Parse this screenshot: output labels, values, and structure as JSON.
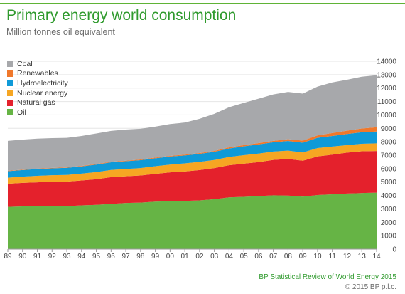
{
  "title": "Primary energy world consumption",
  "subtitle": "Million tonnes oil equivalent",
  "footer": {
    "source": "BP Statistical Review of World Energy 2015",
    "copyright": "© 2015 BP p.l.c."
  },
  "colors": {
    "brand_green": "#2f9a2d",
    "oil": "#66b445",
    "natural_gas": "#e4212c",
    "nuclear_energy": "#f6a623",
    "hydroelectricity": "#0f9ad8",
    "renewables": "#f0782b",
    "coal": "#a7a8ab"
  },
  "chart_data": {
    "type": "area",
    "stacked": true,
    "title": "Primary energy world consumption",
    "subtitle": "Million tonnes oil equivalent",
    "x_tick_labels": [
      "89",
      "90",
      "91",
      "92",
      "93",
      "94",
      "95",
      "96",
      "97",
      "98",
      "99",
      "00",
      "01",
      "02",
      "03",
      "04",
      "05",
      "06",
      "07",
      "08",
      "09",
      "10",
      "11",
      "12",
      "13",
      "14"
    ],
    "x": [
      1989,
      1990,
      1991,
      1992,
      1993,
      1994,
      1995,
      1996,
      1997,
      1998,
      1999,
      2000,
      2001,
      2002,
      2003,
      2004,
      2005,
      2006,
      2007,
      2008,
      2009,
      2010,
      2011,
      2012,
      2013,
      2014
    ],
    "y_axis_side": "right",
    "ylim": [
      0,
      14000
    ],
    "y_ticks": [
      0,
      1000,
      2000,
      3000,
      4000,
      5000,
      6000,
      7000,
      8000,
      9000,
      10000,
      11000,
      12000,
      13000,
      14000
    ],
    "legend": [
      "Coal",
      "Renewables",
      "Hydroelectricity",
      "Nuclear energy",
      "Natural gas",
      "Oil"
    ],
    "legend_placement": "top-left",
    "series": [
      {
        "name": "Oil",
        "color": "#66b445",
        "values": [
          3150,
          3180,
          3180,
          3220,
          3200,
          3260,
          3300,
          3370,
          3440,
          3470,
          3540,
          3570,
          3590,
          3630,
          3720,
          3860,
          3900,
          3950,
          4010,
          3990,
          3910,
          4030,
          4080,
          4140,
          4180,
          4210
        ]
      },
      {
        "name": "Natural gas",
        "color": "#e4212c",
        "values": [
          1720,
          1760,
          1800,
          1810,
          1830,
          1860,
          1910,
          1990,
          1990,
          2020,
          2070,
          2150,
          2200,
          2260,
          2320,
          2390,
          2470,
          2530,
          2640,
          2730,
          2680,
          2880,
          2960,
          3050,
          3110,
          3100
        ]
      },
      {
        "name": "Nuclear energy",
        "color": "#f6a623",
        "values": [
          450,
          460,
          480,
          480,
          500,
          510,
          530,
          540,
          540,
          550,
          570,
          580,
          600,
          610,
          600,
          620,
          630,
          640,
          620,
          620,
          610,
          620,
          600,
          560,
          560,
          570
        ]
      },
      {
        "name": "Hydroelectricity",
        "color": "#0f9ad8",
        "values": [
          490,
          490,
          510,
          510,
          530,
          530,
          560,
          570,
          580,
          590,
          590,
          600,
          590,
          600,
          610,
          630,
          660,
          680,
          690,
          720,
          730,
          770,
          790,
          830,
          860,
          880
        ]
      },
      {
        "name": "Renewables",
        "color": "#f0782b",
        "values": [
          30,
          30,
          30,
          30,
          30,
          40,
          40,
          40,
          40,
          50,
          50,
          50,
          60,
          60,
          70,
          80,
          90,
          100,
          110,
          130,
          160,
          180,
          220,
          250,
          280,
          320
        ]
      },
      {
        "name": "Coal",
        "color": "#a7a8ab",
        "values": [
          2230,
          2240,
          2230,
          2220,
          2200,
          2230,
          2280,
          2300,
          2320,
          2290,
          2310,
          2370,
          2390,
          2550,
          2760,
          2990,
          3150,
          3310,
          3460,
          3520,
          3500,
          3630,
          3770,
          3790,
          3860,
          3880
        ]
      }
    ]
  }
}
